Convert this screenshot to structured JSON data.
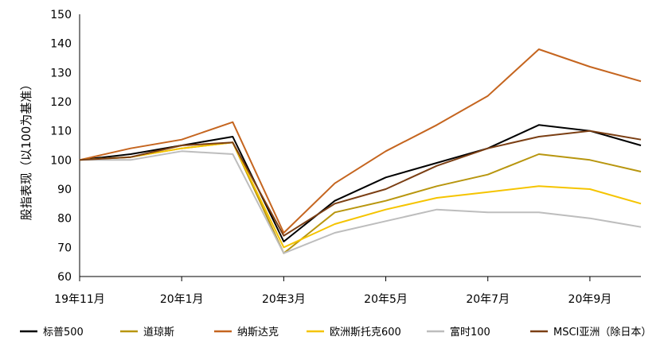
{
  "chart_data": {
    "type": "line",
    "ylabel": "股指表现（以100为基准）",
    "ylim": [
      60,
      150
    ],
    "yticks": [
      60,
      70,
      80,
      90,
      100,
      110,
      120,
      130,
      140,
      150
    ],
    "x_tick_labels": [
      "19年11月",
      "20年1月",
      "20年3月",
      "20年5月",
      "20年7月",
      "20年9月"
    ],
    "x": [
      "2019-11",
      "2019-12",
      "2020-01",
      "2020-02",
      "2020-03",
      "2020-04",
      "2020-05",
      "2020-06",
      "2020-07",
      "2020-08",
      "2020-09",
      "2020-10"
    ],
    "legend_position": "bottom",
    "series": [
      {
        "name": "标普500",
        "color": "#000000",
        "values": [
          100,
          102,
          105,
          108,
          72,
          86,
          94,
          99,
          104,
          112,
          110,
          105
        ]
      },
      {
        "name": "道琼斯",
        "color": "#B8960F",
        "values": [
          100,
          101,
          104,
          106,
          68,
          82,
          86,
          91,
          95,
          102,
          100,
          96
        ]
      },
      {
        "name": "纳斯达克",
        "color": "#C5651F",
        "values": [
          100,
          104,
          107,
          113,
          75,
          92,
          103,
          112,
          122,
          138,
          132,
          127
        ]
      },
      {
        "name": "欧洲斯托克600",
        "color": "#F5C400",
        "values": [
          100,
          101,
          104,
          106,
          70,
          78,
          83,
          87,
          89,
          91,
          90,
          85
        ]
      },
      {
        "name": "富时100",
        "color": "#BDBDBD",
        "values": [
          100,
          100,
          103,
          102,
          68,
          75,
          79,
          83,
          82,
          82,
          80,
          77
        ]
      },
      {
        "name": "MSCI亚洲（除日本）",
        "color": "#7B3F14",
        "values": [
          100,
          101,
          105,
          106,
          74,
          85,
          90,
          98,
          104,
          108,
          110,
          107
        ]
      }
    ]
  }
}
